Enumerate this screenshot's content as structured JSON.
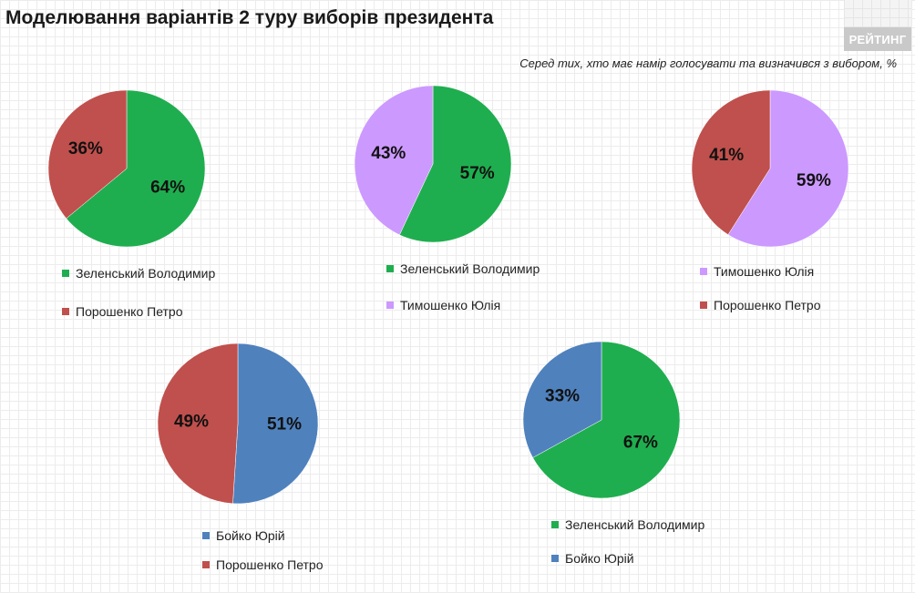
{
  "header": {
    "title": "Моделювання варіантів 2 туру виборів президента",
    "brand": "РЕЙТИНГ",
    "subtitle": "Серед тих, хто має намір голосувати  та визначився з вибором, %"
  },
  "colors": {
    "Зеленський Володимир": "#1fae4f",
    "Порошенко Петро": "#c0504d",
    "Тимошенко Юлія": "#cc99ff",
    "Бойко Юрій": "#4f81bd"
  },
  "chart_data": [
    {
      "type": "pie",
      "slices": [
        {
          "name": "Зеленський Володимир",
          "value": 64,
          "label": "64%"
        },
        {
          "name": "Порошенко Петро",
          "value": 36,
          "label": "36%"
        }
      ],
      "legend": [
        "Зеленський Володимир",
        "Порошенко Петро"
      ]
    },
    {
      "type": "pie",
      "slices": [
        {
          "name": "Зеленський Володимир",
          "value": 57,
          "label": "57%"
        },
        {
          "name": "Тимошенко Юлія",
          "value": 43,
          "label": "43%"
        }
      ],
      "legend": [
        "Зеленський Володимир",
        "Тимошенко Юлія"
      ]
    },
    {
      "type": "pie",
      "slices": [
        {
          "name": "Тимошенко Юлія",
          "value": 59,
          "label": "59%"
        },
        {
          "name": "Порошенко Петро",
          "value": 41,
          "label": "41%"
        }
      ],
      "legend": [
        "Тимошенко Юлія",
        "Порошенко Петро"
      ]
    },
    {
      "type": "pie",
      "slices": [
        {
          "name": "Бойко Юрій",
          "value": 51,
          "label": "51%"
        },
        {
          "name": "Порошенко Петро",
          "value": 49,
          "label": "49%"
        }
      ],
      "legend": [
        "Бойко Юрій",
        "Порошенко Петро"
      ]
    },
    {
      "type": "pie",
      "slices": [
        {
          "name": "Зеленський Володимир",
          "value": 67,
          "label": "67%"
        },
        {
          "name": "Бойко Юрій",
          "value": 33,
          "label": "33%"
        }
      ],
      "legend": [
        "Зеленський Володимир",
        "Бойко Юрій"
      ]
    }
  ]
}
